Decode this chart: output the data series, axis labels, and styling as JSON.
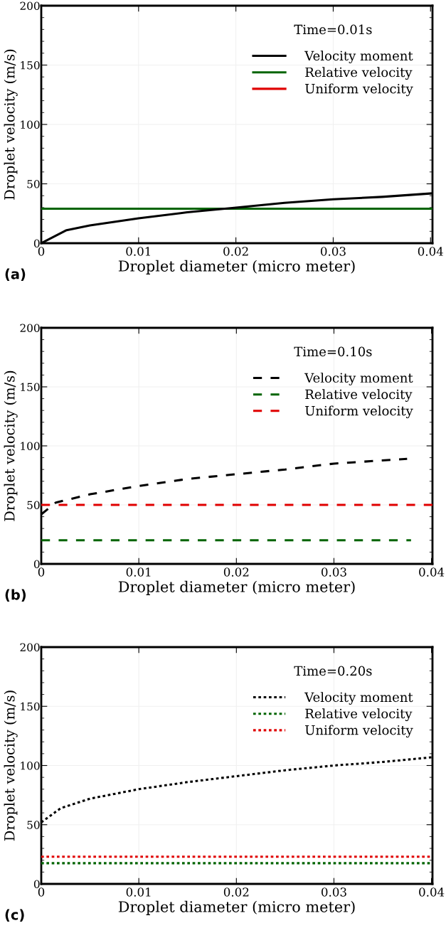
{
  "chart_data": [
    {
      "type": "line",
      "xlabel": "Droplet diameter (micro meter)",
      "ylabel": "Droplet velocity (m/s)",
      "legend_title": "Time=0.01s",
      "annotations": [
        "(a)"
      ],
      "line_style": "solid",
      "legend": "top right",
      "grid": true,
      "xlim": [
        0,
        0.0402
      ],
      "xticks": [
        0,
        0.01,
        0.02,
        0.03,
        0.04
      ],
      "ylim": [
        0,
        200
      ],
      "yticks": [
        0,
        50,
        100,
        150,
        200
      ],
      "series": [
        {
          "name": "Velocity moment",
          "color": "#000000",
          "x": [
            0,
            0.0026,
            0.005,
            0.01,
            0.015,
            0.02,
            0.025,
            0.03,
            0.035,
            0.0402
          ],
          "values": [
            0,
            11,
            15,
            21,
            26,
            30,
            34,
            37,
            39,
            42
          ]
        },
        {
          "name": "Relative velocity",
          "color": "#006400",
          "x": [
            0,
            0.0402
          ],
          "values": [
            29,
            29
          ]
        },
        {
          "name": "Uniform velocity",
          "color": "#e00000"
        }
      ]
    },
    {
      "type": "line",
      "xlabel": "Droplet diameter (micro meter)",
      "ylabel": "Droplet velocity (m/s)",
      "legend_title": "Time=0.10s",
      "annotations": [
        "(b)"
      ],
      "line_style": "dashed",
      "legend": "top right",
      "grid": true,
      "xlim": [
        0,
        0.0401
      ],
      "xticks": [
        0,
        0.01,
        0.02,
        0.03,
        0.04
      ],
      "ylim": [
        0,
        200
      ],
      "yticks": [
        0,
        50,
        100,
        150,
        200
      ],
      "series": [
        {
          "name": "Velocity moment",
          "color": "#000000",
          "x": [
            0,
            0.0015,
            0.005,
            0.01,
            0.015,
            0.02,
            0.025,
            0.03,
            0.0375
          ],
          "values": [
            42,
            52,
            59,
            66,
            72,
            76,
            80,
            85,
            89
          ]
        },
        {
          "name": "Relative velocity",
          "color": "#006400",
          "x": [
            0,
            0.0379
          ],
          "values": [
            20,
            20
          ]
        },
        {
          "name": "Uniform velocity",
          "color": "#e00000",
          "x": [
            0,
            0.0401
          ],
          "values": [
            50,
            50
          ]
        }
      ]
    },
    {
      "type": "line",
      "xlabel": "Droplet diameter (micro meter)",
      "ylabel": "Droplet velocity (m/s)",
      "legend_title": "Time=0.20s",
      "annotations": [
        "(c)"
      ],
      "line_style": "dotted",
      "legend": "top right",
      "grid": true,
      "xlim": [
        0,
        0.0401
      ],
      "xticks": [
        0,
        0.01,
        0.02,
        0.03,
        0.04
      ],
      "ylim": [
        0,
        200
      ],
      "yticks": [
        0,
        50,
        100,
        150,
        200
      ],
      "series": [
        {
          "name": "Velocity moment",
          "color": "#000000",
          "x": [
            0,
            0.001,
            0.002,
            0.005,
            0.01,
            0.015,
            0.02,
            0.025,
            0.03,
            0.035,
            0.0401
          ],
          "values": [
            52,
            58,
            64,
            72,
            80,
            86,
            91,
            96,
            100,
            103,
            107
          ]
        },
        {
          "name": "Relative velocity",
          "color": "#006400",
          "x": [
            0,
            0.0401
          ],
          "values": [
            17.5,
            17.5
          ]
        },
        {
          "name": "Uniform velocity",
          "color": "#e00000",
          "x": [
            0,
            0.0401
          ],
          "values": [
            23,
            23
          ]
        }
      ]
    }
  ]
}
